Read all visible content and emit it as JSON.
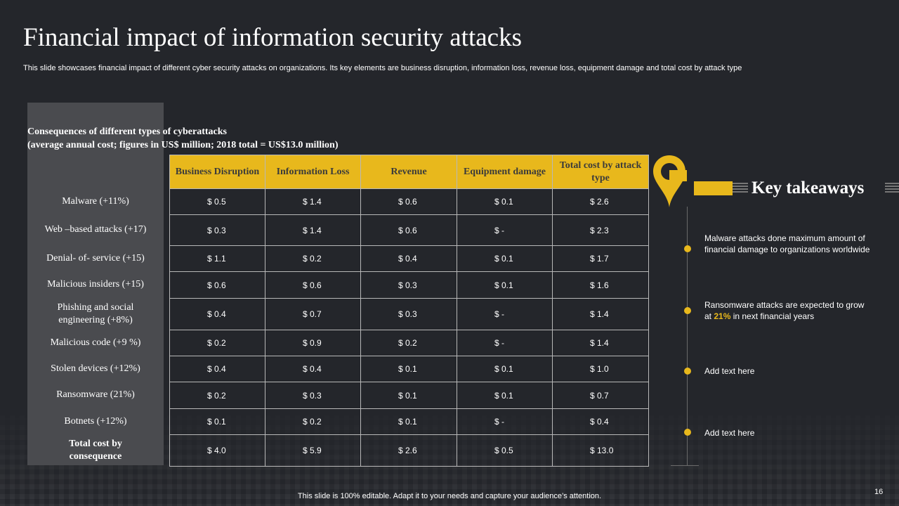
{
  "slide": {
    "title": "Financial impact of information security attacks",
    "subtitle": "This slide showcases financial impact of different cyber security attacks on organizations. Its key elements are business disruption, information loss, revenue loss, equipment damage and total cost by attack type",
    "footer": "This slide is 100% editable. Adapt it to your needs and capture your audience’s attention.",
    "page_number": "16"
  },
  "table": {
    "heading_line1": "Consequences of different types of cyberattacks",
    "heading_line2": "(average annual cost; figures in US$ million; 2018 total = US$13.0 million)",
    "headers": [
      "Business Disruption",
      "Information Loss",
      "Revenue",
      "Equipment damage",
      "Total cost by attack type"
    ],
    "rows": [
      {
        "label": "Malware (+11%)",
        "values": [
          "$ 0.5",
          "$ 1.4",
          "$ 0.6",
          "$ 0.1",
          "$ 2.6"
        ]
      },
      {
        "label": "Web –based attacks (+17)",
        "values": [
          "$ 0.3",
          "$ 1.4",
          "$ 0.6",
          "$ -",
          "$ 2.3"
        ]
      },
      {
        "label": "Denial- of- service (+15)",
        "values": [
          "$ 1.1",
          "$ 0.2",
          "$ 0.4",
          "$ 0.1",
          "$ 1.7"
        ]
      },
      {
        "label": "Malicious insiders (+15)",
        "values": [
          "$ 0.6",
          "$ 0.6",
          "$ 0.3",
          "$ 0.1",
          "$ 1.6"
        ]
      },
      {
        "label": "Phishing and social engineering (+8%)",
        "values": [
          "$ 0.4",
          "$ 0.7",
          "$ 0.3",
          "$ -",
          "$ 1.4"
        ]
      },
      {
        "label": "Malicious code (+9 %)",
        "values": [
          "$ 0.2",
          "$ 0.9",
          "$ 0.2",
          "$ -",
          "$ 1.4"
        ]
      },
      {
        "label": "Stolen devices (+12%)",
        "values": [
          "$ 0.4",
          "$ 0.4",
          "$ 0.1",
          "$ 0.1",
          "$ 1.0"
        ]
      },
      {
        "label": "Ransomware (21%)",
        "values": [
          "$ 0.2",
          "$ 0.3",
          "$ 0.1",
          "$ 0.1",
          "$ 0.7"
        ]
      },
      {
        "label": "Botnets (+12%)",
        "values": [
          "$ 0.1",
          "$ 0.2",
          "$ 0.1",
          "$ -",
          "$ 0.4"
        ]
      },
      {
        "label": "Total cost by consequence",
        "values": [
          "$ 4.0",
          "$ 5.9",
          "$ 2.6",
          "$ 0.5",
          "$ 13.0"
        ]
      }
    ]
  },
  "takeaways": {
    "title": "Key takeaways",
    "item1": "Malware attacks done maximum amount of financial damage to organizations worldwide",
    "item2_before": "Ransomware attacks are expected to grow at ",
    "item2_highlight": "21%",
    "item2_after": " in next financial years",
    "item3": "Add text here",
    "item4": "Add text here"
  },
  "colors": {
    "accent": "#e8b81c",
    "background": "#24262b",
    "label_panel": "#4a4b4f"
  },
  "icons": {
    "pin": "location-pin-icon"
  }
}
